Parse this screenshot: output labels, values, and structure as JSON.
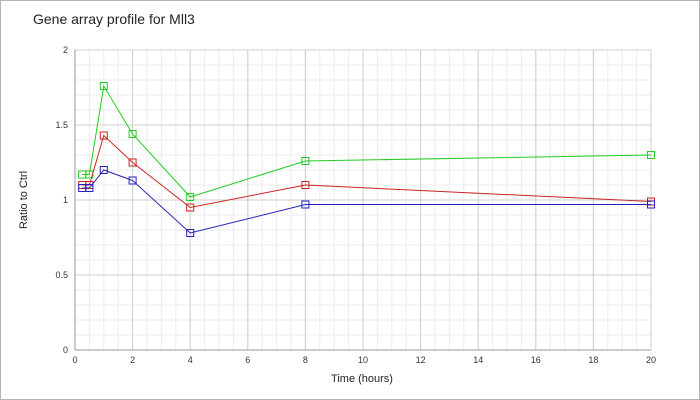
{
  "chart_data": {
    "type": "line",
    "title": "Gene array profile for Mll3",
    "xlabel": "Time (hours)",
    "ylabel": "Ratio to Ctrl",
    "xlim": [
      0,
      20
    ],
    "ylim": [
      0,
      2
    ],
    "xticks": [
      0,
      2,
      4,
      6,
      8,
      10,
      12,
      14,
      16,
      18,
      20
    ],
    "yticks": [
      0,
      0.5,
      1,
      1.5,
      2
    ],
    "ytick_labels": [
      "0",
      "0.5",
      "1",
      "1.5",
      "2"
    ],
    "grid": true,
    "marker": "square",
    "series": [
      {
        "color": "#22cc22",
        "points": [
          [
            0.25,
            1.17
          ],
          [
            0.5,
            1.17
          ],
          [
            1,
            1.76
          ],
          [
            2,
            1.44
          ],
          [
            4,
            1.02
          ],
          [
            8,
            1.26
          ],
          [
            20,
            1.3
          ]
        ]
      },
      {
        "color": "#cc2222",
        "points": [
          [
            0.25,
            1.1
          ],
          [
            0.5,
            1.1
          ],
          [
            1,
            1.43
          ],
          [
            2,
            1.25
          ],
          [
            4,
            0.95
          ],
          [
            8,
            1.1
          ],
          [
            20,
            0.99
          ]
        ]
      },
      {
        "color": "#2222bb",
        "points": [
          [
            0.25,
            1.08
          ],
          [
            0.5,
            1.08
          ],
          [
            1,
            1.2
          ],
          [
            2,
            1.13
          ],
          [
            4,
            0.78
          ],
          [
            8,
            0.97
          ],
          [
            20,
            0.97
          ]
        ]
      }
    ]
  }
}
